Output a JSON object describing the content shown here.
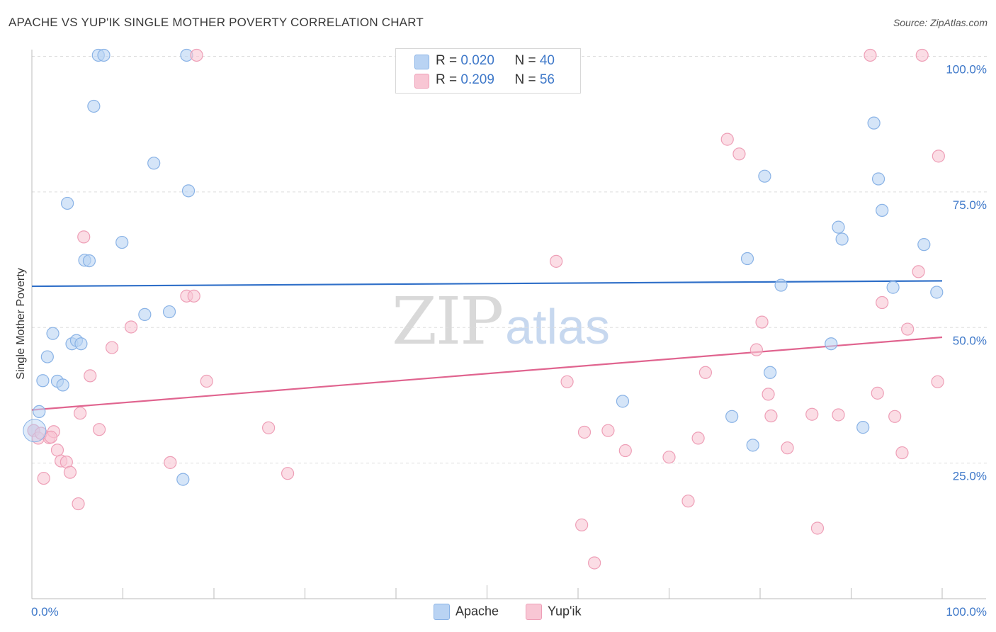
{
  "title": "APACHE VS YUP'IK SINGLE MOTHER POVERTY CORRELATION CHART",
  "source": "Source: ZipAtlas.com",
  "watermark": {
    "zip": "ZIP",
    "atlas": "atlas"
  },
  "colors": {
    "apache_fill": "#b9d3f3",
    "apache_stroke": "#8ab3e6",
    "apache_line": "#2f6fc8",
    "yupik_fill": "#f8c6d4",
    "yupik_stroke": "#ee9fb7",
    "yupik_line": "#e0648f",
    "tick_label": "#3e78c9",
    "grid": "#dddddd"
  },
  "legend": {
    "apache": {
      "r_label": "R = ",
      "r_value": "0.020",
      "n_label": "N = ",
      "n_value": "40"
    },
    "yupik": {
      "r_label": "R = ",
      "r_value": "0.209",
      "n_label": "N = ",
      "n_value": "56"
    }
  },
  "bottom_legend": {
    "apache": "Apache",
    "yupik": "Yup'ik"
  },
  "chart_data": {
    "type": "scatter",
    "title": "APACHE VS YUP'IK SINGLE MOTHER POVERTY CORRELATION CHART",
    "xlabel": "",
    "ylabel": "Single Mother Poverty",
    "xlim": [
      0,
      100
    ],
    "ylim": [
      0,
      102
    ],
    "x_tick_labels": {
      "left": "0.0%",
      "right": "100.0%"
    },
    "y_ticks": [
      {
        "value": 25,
        "label": "25.0%"
      },
      {
        "value": 50,
        "label": "50.0%"
      },
      {
        "value": 75,
        "label": "75.0%"
      },
      {
        "value": 100,
        "label": "100.0%"
      }
    ],
    "series": [
      {
        "name": "Apache",
        "trend": {
          "start": [
            0,
            57.6
          ],
          "end": [
            100,
            58.6
          ]
        },
        "points": [
          [
            0.2,
            31.0
          ],
          [
            0.8,
            34.5
          ],
          [
            1.2,
            40.2
          ],
          [
            1.7,
            44.6
          ],
          [
            2.3,
            48.9
          ],
          [
            2.8,
            40.1
          ],
          [
            3.4,
            39.4
          ],
          [
            3.9,
            72.9
          ],
          [
            4.4,
            47.0
          ],
          [
            4.9,
            47.6
          ],
          [
            5.4,
            47.0
          ],
          [
            5.8,
            62.4
          ],
          [
            6.3,
            62.3
          ],
          [
            6.8,
            90.8
          ],
          [
            7.3,
            100.2
          ],
          [
            7.9,
            100.2
          ],
          [
            9.9,
            65.7
          ],
          [
            12.4,
            52.4
          ],
          [
            13.4,
            80.3
          ],
          [
            15.1,
            52.9
          ],
          [
            16.6,
            22.0
          ],
          [
            17.0,
            100.2
          ],
          [
            17.2,
            75.2
          ],
          [
            64.9,
            36.4
          ],
          [
            76.9,
            33.6
          ],
          [
            78.6,
            62.7
          ],
          [
            79.2,
            28.3
          ],
          [
            80.5,
            77.9
          ],
          [
            81.1,
            41.7
          ],
          [
            82.3,
            57.8
          ],
          [
            87.8,
            47.0
          ],
          [
            88.6,
            68.5
          ],
          [
            89.0,
            66.3
          ],
          [
            91.3,
            31.6
          ],
          [
            92.5,
            87.7
          ],
          [
            93.0,
            77.4
          ],
          [
            93.4,
            71.6
          ],
          [
            94.6,
            57.4
          ],
          [
            98.0,
            65.3
          ],
          [
            99.4,
            56.5
          ]
        ]
      },
      {
        "name": "Yup'ik",
        "trend": {
          "start": [
            0,
            34.8
          ],
          "end": [
            100,
            48.2
          ]
        },
        "points": [
          [
            0.2,
            31.0
          ],
          [
            0.7,
            29.6
          ],
          [
            1.3,
            22.2
          ],
          [
            1.9,
            29.7
          ],
          [
            2.4,
            30.8
          ],
          [
            2.8,
            27.4
          ],
          [
            3.2,
            25.4
          ],
          [
            3.8,
            25.2
          ],
          [
            4.2,
            23.3
          ],
          [
            5.1,
            17.5
          ],
          [
            5.3,
            34.2
          ],
          [
            5.7,
            66.7
          ],
          [
            6.4,
            41.1
          ],
          [
            7.4,
            31.2
          ],
          [
            8.8,
            46.3
          ],
          [
            10.9,
            50.1
          ],
          [
            15.2,
            25.1
          ],
          [
            17.0,
            55.8
          ],
          [
            17.8,
            55.8
          ],
          [
            18.1,
            100.2
          ],
          [
            19.2,
            40.1
          ],
          [
            26.0,
            31.5
          ],
          [
            28.1,
            23.1
          ],
          [
            57.6,
            62.2
          ],
          [
            58.8,
            40.0
          ],
          [
            60.4,
            13.6
          ],
          [
            60.7,
            30.7
          ],
          [
            61.8,
            6.6
          ],
          [
            63.3,
            31.0
          ],
          [
            65.2,
            27.3
          ],
          [
            70.0,
            26.1
          ],
          [
            72.1,
            18.0
          ],
          [
            73.2,
            29.6
          ],
          [
            74.0,
            41.7
          ],
          [
            76.4,
            84.7
          ],
          [
            77.7,
            82.0
          ],
          [
            79.6,
            45.9
          ],
          [
            80.2,
            51.0
          ],
          [
            80.9,
            37.7
          ],
          [
            81.2,
            33.7
          ],
          [
            83.0,
            27.8
          ],
          [
            85.7,
            34.0
          ],
          [
            86.3,
            13.0
          ],
          [
            88.6,
            33.9
          ],
          [
            92.1,
            100.2
          ],
          [
            92.9,
            37.9
          ],
          [
            93.4,
            54.6
          ],
          [
            94.8,
            33.6
          ],
          [
            95.6,
            26.9
          ],
          [
            96.2,
            49.7
          ],
          [
            97.4,
            60.3
          ],
          [
            97.8,
            100.2
          ],
          [
            99.5,
            40.0
          ],
          [
            99.6,
            81.6
          ],
          [
            1.0,
            30.5
          ],
          [
            2.1,
            29.8
          ]
        ]
      }
    ]
  }
}
